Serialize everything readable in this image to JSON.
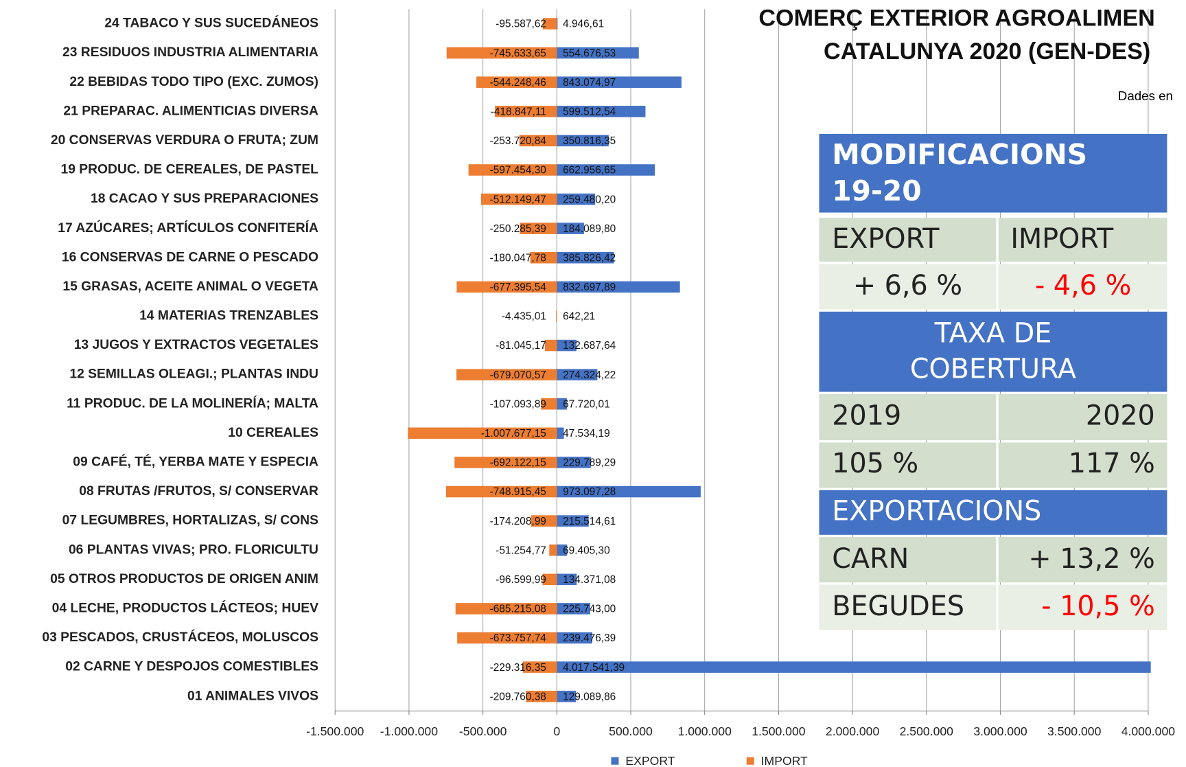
{
  "chart_data": {
    "type": "bar",
    "orientation": "horizontal",
    "title": [
      "COMERÇ EXTERIOR AGROALIMEN",
      "CATALUNYA 2020 (GEN-DES)"
    ],
    "subtitle": "Dades en",
    "categories": [
      "24 TABACO Y SUS SUCEDÁNEOS",
      "23 RESIDUOS INDUSTRIA ALIMENTARIA",
      "22 BEBIDAS TODO TIPO (EXC. ZUMOS)",
      "21 PREPARAC. ALIMENTICIAS DIVERSA",
      "20 CONSERVAS VERDURA O FRUTA; ZUM",
      "19 PRODUC. DE CEREALES, DE PASTEL",
      "18 CACAO Y SUS PREPARACIONES",
      "17 AZÚCARES; ARTÍCULOS CONFITERÍA",
      "16 CONSERVAS DE CARNE O PESCADO",
      "15 GRASAS, ACEITE ANIMAL O VEGETA",
      "14 MATERIAS TRENZABLES",
      "13 JUGOS Y EXTRACTOS VEGETALES",
      "12 SEMILLAS OLEAGI.; PLANTAS INDU",
      "11 PRODUC. DE LA MOLINERÍA; MALTA",
      "10 CEREALES",
      "09 CAFÉ, TÉ, YERBA MATE Y ESPECIA",
      "08 FRUTAS /FRUTOS, S/ CONSERVAR",
      "07 LEGUMBRES, HORTALIZAS, S/ CONS",
      "06 PLANTAS VIVAS; PRO. FLORICULTU",
      "05 OTROS PRODUCTOS DE ORIGEN ANIM",
      "04 LECHE, PRODUCTOS LÁCTEOS; HUEV",
      "03 PESCADOS, CRUSTÁCEOS, MOLUSCOS",
      "02 CARNE Y DESPOJOS COMESTIBLES",
      "01 ANIMALES VIVOS"
    ],
    "series": [
      {
        "name": "EXPORT",
        "color": "#4472c4",
        "values": [
          4946.61,
          554676.53,
          843074.97,
          599512.54,
          350816.35,
          662956.65,
          259480.2,
          184089.8,
          385826.42,
          832697.89,
          642.21,
          132687.64,
          274324.22,
          67720.01,
          47534.19,
          229789.29,
          973097.28,
          215514.61,
          69405.3,
          134371.08,
          225743.0,
          239476.39,
          4017541.39,
          129089.86
        ],
        "value_labels": [
          "4.946,61",
          "554.676,53",
          "843.074,97",
          "599.512,54",
          "350.816,35",
          "662.956,65",
          "259.480,20",
          "184.089,80",
          "385.826,42",
          "832.697,89",
          "642,21",
          "132.687,64",
          "274.324,22",
          "67.720,01",
          "47.534,19",
          "229.789,29",
          "973.097,28",
          "215.514,61",
          "69.405,30",
          "134.371,08",
          "225.743,00",
          "239.476,39",
          "4.017.541,39",
          "129.089,86"
        ]
      },
      {
        "name": "IMPORT",
        "color": "#ed7d31",
        "values": [
          -95587.62,
          -745633.65,
          -544248.46,
          -418847.11,
          -253720.84,
          -597454.3,
          -512149.47,
          -250285.39,
          -180047.78,
          -677395.54,
          -4435.01,
          -81045.17,
          -679070.57,
          -107093.89,
          -1007677.15,
          -692122.15,
          -748915.45,
          -174208.99,
          -51254.77,
          -96599.99,
          -685215.08,
          -673757.74,
          -229316.35,
          -209760.38
        ],
        "value_labels": [
          "-95.587,62",
          "-745.633,65",
          "-544.248,46",
          "-418.847,11",
          "-253.720,84",
          "-597.454,30",
          "-512.149,47",
          "-250.285,39",
          "-180.047,78",
          "-677.395,54",
          "-4.435,01",
          "-81.045,17",
          "-679.070,57",
          "-107.093,89",
          "-1.007.677,15",
          "-692.122,15",
          "-748.915,45",
          "-174.208,99",
          "-51.254,77",
          "-96.599,99",
          "-685.215,08",
          "-673.757,74",
          "-229.316,35",
          "-209.760,38"
        ]
      }
    ],
    "xlim": [
      -1500000,
      4000000
    ],
    "xticks": [
      {
        "value": -1500000,
        "label": "-1.500.000"
      },
      {
        "value": -1000000,
        "label": "-1.000.000"
      },
      {
        "value": -500000,
        "label": "-500.000"
      },
      0,
      {
        "value": 500000,
        "label": "500.000"
      },
      {
        "value": 1000000,
        "label": "1.000.000"
      },
      {
        "value": 1500000,
        "label": "1.500.000"
      },
      {
        "value": 2000000,
        "label": "2.000.000"
      },
      {
        "value": 2500000,
        "label": "2.500.000"
      },
      {
        "value": 3000000,
        "label": "3.000.000"
      },
      {
        "value": 3500000,
        "label": "3.500.000"
      },
      {
        "value": 4000000,
        "label": "4.000.000"
      }
    ],
    "grid": true,
    "legend": "bottom"
  },
  "info_box": {
    "heading": [
      "MODIFICACIONS",
      "19-20"
    ],
    "change_labels": [
      "EXPORT",
      "IMPORT"
    ],
    "change_values": [
      "+ 6,6 %",
      "- 4,6 %"
    ],
    "coverage_heading": [
      "TAXA DE",
      "COBERTURA"
    ],
    "coverage_years": [
      "2019",
      "2020"
    ],
    "coverage_values": [
      "105 %",
      "117 %"
    ],
    "exports_heading": "EXPORTACIONS",
    "exports": [
      [
        "CARN",
        "+ 13,2 %"
      ],
      [
        "BEGUDES",
        "- 10,5 %"
      ]
    ]
  }
}
